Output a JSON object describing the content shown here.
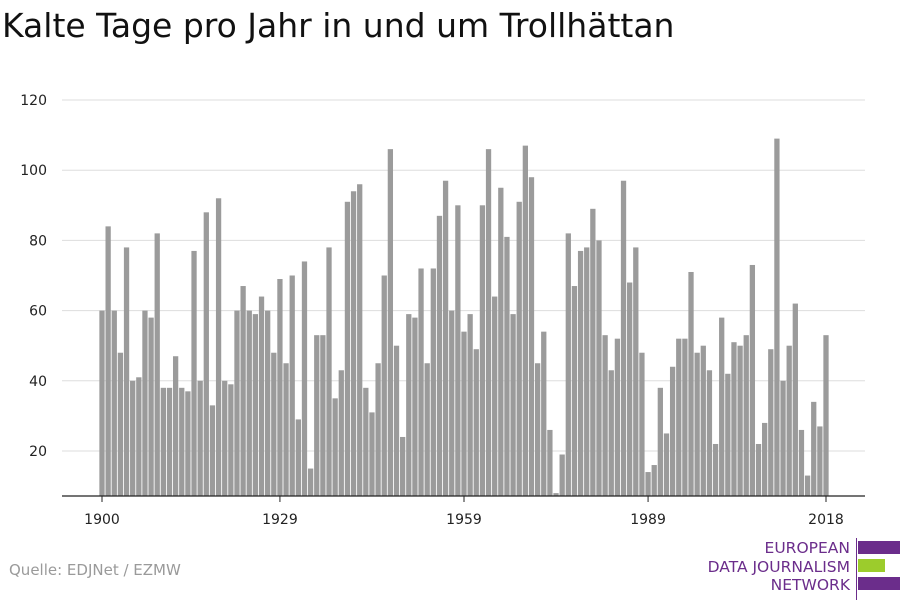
{
  "chart_data": {
    "type": "bar",
    "title": "Kalte Tage pro Jahr in und um Trollhättan",
    "xlabel": "",
    "ylabel": "",
    "x_ticks": [
      1900,
      1929,
      1959,
      1989,
      2018
    ],
    "y_ticks": [
      20,
      40,
      60,
      80,
      100,
      120
    ],
    "ylim": [
      7,
      120
    ],
    "xlim": [
      1900,
      2018
    ],
    "grid": "horizontal",
    "legend": "none",
    "bar_color": "#9b9b9b",
    "start_year": 1900,
    "values": [
      60,
      84,
      60,
      48,
      78,
      40,
      41,
      60,
      58,
      82,
      38,
      38,
      47,
      38,
      37,
      77,
      40,
      88,
      33,
      92,
      40,
      39,
      60,
      67,
      60,
      59,
      64,
      60,
      48,
      69,
      45,
      70,
      29,
      74,
      15,
      53,
      53,
      78,
      35,
      43,
      91,
      94,
      96,
      38,
      31,
      45,
      70,
      106,
      50,
      24,
      59,
      58,
      72,
      45,
      72,
      87,
      97,
      60,
      90,
      54,
      59,
      49,
      90,
      106,
      64,
      95,
      81,
      59,
      91,
      107,
      98,
      45,
      54,
      26,
      8,
      19,
      82,
      67,
      77,
      78,
      89,
      80,
      53,
      43,
      52,
      97,
      68,
      78,
      48,
      14,
      16,
      38,
      25,
      44,
      52,
      52,
      71,
      48,
      50,
      43,
      22,
      58,
      42,
      51,
      50,
      53,
      73,
      22,
      28,
      49,
      109,
      40,
      50,
      62,
      26,
      13,
      34,
      27,
      53
    ]
  },
  "source": "Quelle: EDJNet / EZMW",
  "logo": {
    "lines": [
      "EUROPEAN",
      "DATA JOURNALISM",
      "NETWORK"
    ],
    "colors": {
      "purple": "#6b2d8b",
      "green": "#9ccc2c"
    }
  }
}
